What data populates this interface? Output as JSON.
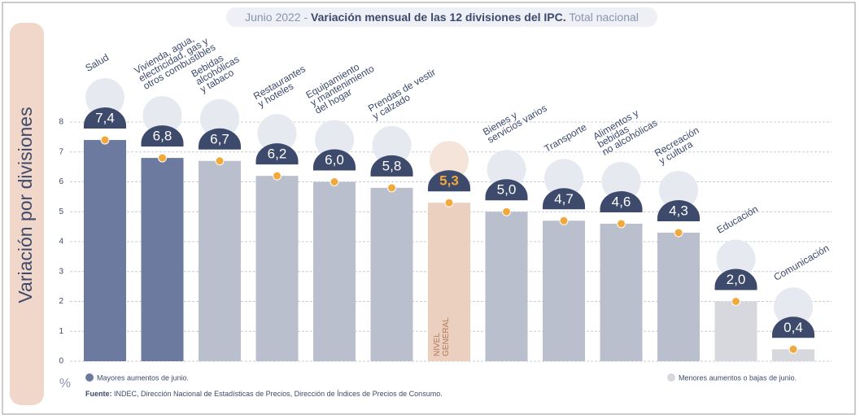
{
  "chart_data": {
    "type": "bar",
    "title": [
      "Junio 2022 -",
      "Variación mensual de las 12 divisiones del IPC.",
      "Total nacional"
    ],
    "y_label": "Variación por divisiones",
    "y_unit": "%",
    "categories": [
      "Salud",
      "Vivienda, agua,\nelectricidad, gas y\notros combustibles",
      "Bebidas\nalcohólicas\ny tabaco",
      "Restaurantes\ny hoteles",
      "Equipamiento\ny mantenimiento\ndel hogar",
      "Prendas de vestir\ny calzado",
      "NIVEL\nGENERAL",
      "Bienes y\nservicios varios",
      "Transporte",
      "Alimentos y\nbebidas\nno alcohólicas",
      "Recreación\ny cultura",
      "Educación",
      "Comunicación"
    ],
    "values": [
      7.4,
      6.8,
      6.7,
      6.2,
      6.0,
      5.8,
      5.3,
      5.0,
      4.7,
      4.6,
      4.3,
      2.0,
      0.4
    ],
    "value_labels": [
      "7,4",
      "6,8",
      "6,7",
      "6,2",
      "6,0",
      "5,8",
      "5,3",
      "5,0",
      "4,7",
      "4,6",
      "4,3",
      "2,0",
      "0,4"
    ],
    "colors": [
      "#6b7a9e",
      "#6b7a9e",
      "#b9bfcc",
      "#b9bfcc",
      "#b9bfcc",
      "#b9bfcc",
      "#ebcfbf",
      "#b9bfcc",
      "#b9bfcc",
      "#b9bfcc",
      "#b9bfcc",
      "#d6d8dd",
      "#d6d8dd"
    ],
    "ylim": [
      0,
      8
    ],
    "yticks": [
      0,
      1,
      2,
      3,
      4,
      5,
      6,
      7,
      8
    ],
    "grid": true,
    "legend": [
      {
        "name": "Mayores aumentos de junio.",
        "color": "#6b7a9e"
      },
      {
        "name": "Menores aumentos o bajas de junio.",
        "color": "#d6d8dd"
      }
    ],
    "source": {
      "label": "Fuente:",
      "text": "INDEC, Dirección Nacional de Estadísticas de Precios, Dirección de Índices de Precios de Consumo."
    }
  }
}
